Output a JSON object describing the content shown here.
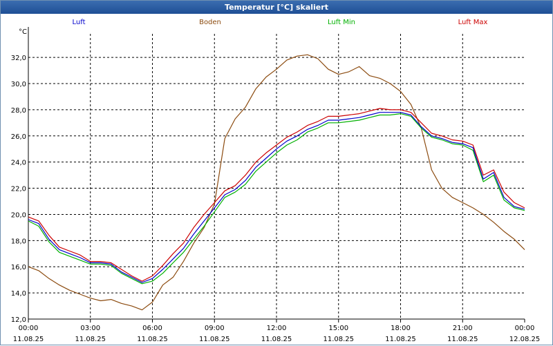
{
  "window": {
    "title": "Temperatur [°C] skaliert"
  },
  "colors": {
    "luft": "#0000cc",
    "boden": "#8b4a0e",
    "luft_min": "#00b000",
    "luft_max": "#cc0000"
  },
  "chart_data": {
    "type": "line",
    "title": "Temperatur [°C] skaliert",
    "ylabel": "°C",
    "ylim": [
      12.0,
      33.8
    ],
    "xlim": [
      0,
      24
    ],
    "grid": true,
    "legend_position": "top",
    "yticks": [
      "32,0",
      "30,0",
      "28,0",
      "26,0",
      "24,0",
      "22,0",
      "20,0",
      "18,0",
      "16,0",
      "14,0",
      "12,0"
    ],
    "xticks": [
      {
        "time": "00:00",
        "date": "11.08.25"
      },
      {
        "time": "03:00",
        "date": "11.08.25"
      },
      {
        "time": "06:00",
        "date": "11.08.25"
      },
      {
        "time": "09:00",
        "date": "11.08.25"
      },
      {
        "time": "12:00",
        "date": "11.08.25"
      },
      {
        "time": "15:00",
        "date": "11.08.25"
      },
      {
        "time": "18:00",
        "date": "11.08.25"
      },
      {
        "time": "21:00",
        "date": "11.08.25"
      },
      {
        "time": "00:00",
        "date": "12.08.25"
      }
    ],
    "x": [
      0,
      0.5,
      1,
      1.5,
      2,
      2.5,
      3,
      3.5,
      4,
      4.5,
      5,
      5.5,
      6,
      6.5,
      7,
      7.5,
      8,
      8.5,
      9,
      9.5,
      10,
      10.5,
      11,
      11.5,
      12,
      12.5,
      13,
      13.5,
      14,
      14.5,
      15,
      15.5,
      16,
      16.5,
      17,
      17.5,
      18,
      18.5,
      19,
      19.5,
      20,
      20.5,
      21,
      21.5,
      22,
      22.5,
      23,
      23.5,
      24
    ],
    "series": [
      {
        "key": "luft",
        "name": "Luft",
        "values": [
          19.6,
          19.3,
          18.1,
          17.3,
          17.0,
          16.7,
          16.3,
          16.3,
          16.2,
          15.6,
          15.2,
          14.8,
          15.1,
          15.8,
          16.6,
          17.4,
          18.5,
          19.5,
          20.5,
          21.5,
          21.9,
          22.6,
          23.6,
          24.3,
          25.0,
          25.6,
          26.0,
          26.5,
          26.8,
          27.2,
          27.2,
          27.3,
          27.4,
          27.6,
          27.8,
          27.8,
          27.8,
          27.6,
          26.7,
          26.0,
          25.8,
          25.5,
          25.4,
          25.1,
          22.7,
          23.2,
          21.3,
          20.6,
          20.4
        ]
      },
      {
        "key": "boden",
        "name": "Boden",
        "values": [
          16.0,
          15.7,
          15.1,
          14.6,
          14.2,
          13.9,
          13.6,
          13.4,
          13.5,
          13.2,
          13.0,
          12.7,
          13.3,
          14.6,
          15.2,
          16.4,
          17.8,
          19.0,
          20.8,
          25.8,
          27.3,
          28.2,
          29.6,
          30.5,
          31.1,
          31.8,
          32.1,
          32.2,
          31.9,
          31.1,
          30.7,
          30.9,
          31.3,
          30.6,
          30.4,
          30.0,
          29.4,
          28.4,
          26.6,
          23.4,
          22.0,
          21.3,
          20.9,
          20.5,
          20.0,
          19.4,
          18.7,
          18.1,
          17.3
        ]
      },
      {
        "key": "luft_min",
        "name": "Luft Min",
        "values": [
          19.5,
          19.1,
          17.9,
          17.1,
          16.8,
          16.5,
          16.2,
          16.2,
          16.1,
          15.5,
          15.1,
          14.7,
          14.9,
          15.5,
          16.3,
          17.1,
          18.1,
          19.1,
          20.2,
          21.3,
          21.7,
          22.3,
          23.3,
          24.0,
          24.7,
          25.3,
          25.7,
          26.3,
          26.6,
          27.0,
          27.0,
          27.1,
          27.2,
          27.4,
          27.6,
          27.6,
          27.7,
          27.5,
          26.6,
          25.9,
          25.7,
          25.4,
          25.3,
          24.9,
          22.5,
          23.0,
          21.1,
          20.5,
          20.3
        ]
      },
      {
        "key": "luft_max",
        "name": "Luft Max",
        "values": [
          19.8,
          19.5,
          18.4,
          17.5,
          17.2,
          16.9,
          16.4,
          16.4,
          16.3,
          15.8,
          15.3,
          14.9,
          15.3,
          16.1,
          17.0,
          17.8,
          19.0,
          20.0,
          20.9,
          21.8,
          22.2,
          23.0,
          24.0,
          24.7,
          25.3,
          25.9,
          26.3,
          26.8,
          27.1,
          27.5,
          27.5,
          27.6,
          27.7,
          27.9,
          28.1,
          28.0,
          28.0,
          27.8,
          27.0,
          26.2,
          26.0,
          25.7,
          25.6,
          25.3,
          23.0,
          23.4,
          21.7,
          20.9,
          20.5
        ]
      }
    ]
  }
}
